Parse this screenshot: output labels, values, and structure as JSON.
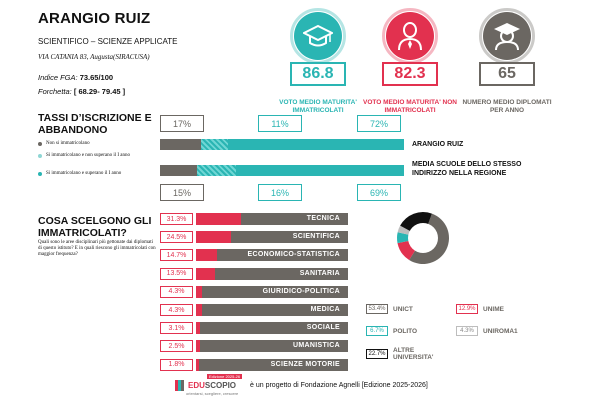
{
  "school": {
    "name": "ARANGIO RUIZ",
    "type": "SCIENTIFICO – SCIENZE APPLICATE",
    "address": "VIA CATANIA 83, Augusta(SIRACUSA)",
    "fga_label": "Indice FGA:",
    "fga_value": "73.65/100",
    "range_label": "Forchetta:",
    "range_value": "[ 68.29- 79.45 ]"
  },
  "stats": [
    {
      "value": "86.8",
      "label": "VOTO MEDIO MATURITA' IMMATRICOLATI",
      "color": "#2ab5b3",
      "icon": "graduation-cap-icon"
    },
    {
      "value": "82.3",
      "label": "VOTO MEDIO MATURITA' NON IMMATRICOLATI",
      "color": "#e2314f",
      "icon": "person-tie-icon"
    },
    {
      "value": "65",
      "label": "NUMERO MEDIO DIPLOMATI PER ANNO",
      "color": "#6b6762",
      "icon": "graduate-avatar-icon"
    }
  ],
  "enrollment": {
    "title_1": "TASSI D’ISCRIZIONE E",
    "title_2": "ABBANDONO",
    "legend": [
      {
        "label": "Non si immatricolano",
        "color": "#6b6762"
      },
      {
        "label": "Si immatricolano e non superano il I anno",
        "color": "#8fd6d4"
      },
      {
        "label": "Si immatricolano e superano il I anno",
        "color": "#2ab5b3"
      }
    ],
    "school_row": {
      "label": "ARANGIO RUIZ",
      "not_enrolled": "17%",
      "dropout": "11%",
      "pass": "72%",
      "values": [
        17,
        11,
        72
      ]
    },
    "region_row": {
      "label": "MEDIA SCUOLE DELLO STESSO INDIRIZZO NELLA REGIONE",
      "not_enrolled": "15%",
      "dropout": "16%",
      "pass": "69%",
      "values": [
        15,
        16,
        69
      ]
    }
  },
  "choices": {
    "title_1": "COSA SCELGONO GLI",
    "title_2": "IMMATRICOLATI?",
    "question": "Quali sono le aree disciplinari più gettonate dai diplomati di questo istituto? E in quali riescono gli immatricolati con maggior frequenza?",
    "items": [
      {
        "pct": "31.3%",
        "value": 31.3,
        "label": "TECNICA"
      },
      {
        "pct": "24.5%",
        "value": 24.5,
        "label": "SCIENTIFICA"
      },
      {
        "pct": "14.7%",
        "value": 14.7,
        "label": "ECONOMICO-STATISTICA"
      },
      {
        "pct": "13.5%",
        "value": 13.5,
        "label": "SANITARIA"
      },
      {
        "pct": "4.3%",
        "value": 4.3,
        "label": "GIURIDICO-POLITICA"
      },
      {
        "pct": "4.3%",
        "value": 4.3,
        "label": "MEDICA"
      },
      {
        "pct": "3.1%",
        "value": 3.1,
        "label": "SOCIALE"
      },
      {
        "pct": "2.5%",
        "value": 2.5,
        "label": "UMANISTICA"
      },
      {
        "pct": "1.8%",
        "value": 1.8,
        "label": "SCIENZE MOTORIE"
      }
    ]
  },
  "universities": {
    "items": [
      {
        "pct": "53.4%",
        "value": 53.4,
        "label": "UNICT",
        "color": "#6b6762"
      },
      {
        "pct": "12.9%",
        "value": 12.9,
        "label": "UNIME",
        "color": "#e2314f"
      },
      {
        "pct": "6.7%",
        "value": 6.7,
        "label": "POLITO",
        "color": "#2ab5b3"
      },
      {
        "pct": "4.3%",
        "value": 4.3,
        "label": "UNIROMA1",
        "color": "#bdbdbd"
      },
      {
        "pct": "22.7%",
        "value": 22.7,
        "label": "ALTRE UNIVERSITA'",
        "color": "#111111"
      }
    ]
  },
  "footer": {
    "brand_edu": "EDU",
    "brand_scopio": "SCOPIO",
    "badge": "Edizione 2025-26",
    "tagline": "orientarsi, scegliere, crescere",
    "text": "è un progetto di Fondazione Agnelli [Edizione 2025-2026]"
  },
  "colors": {
    "teal": "#2ab5b3",
    "red": "#e2314f",
    "gray": "#6b6762",
    "black": "#111111"
  }
}
